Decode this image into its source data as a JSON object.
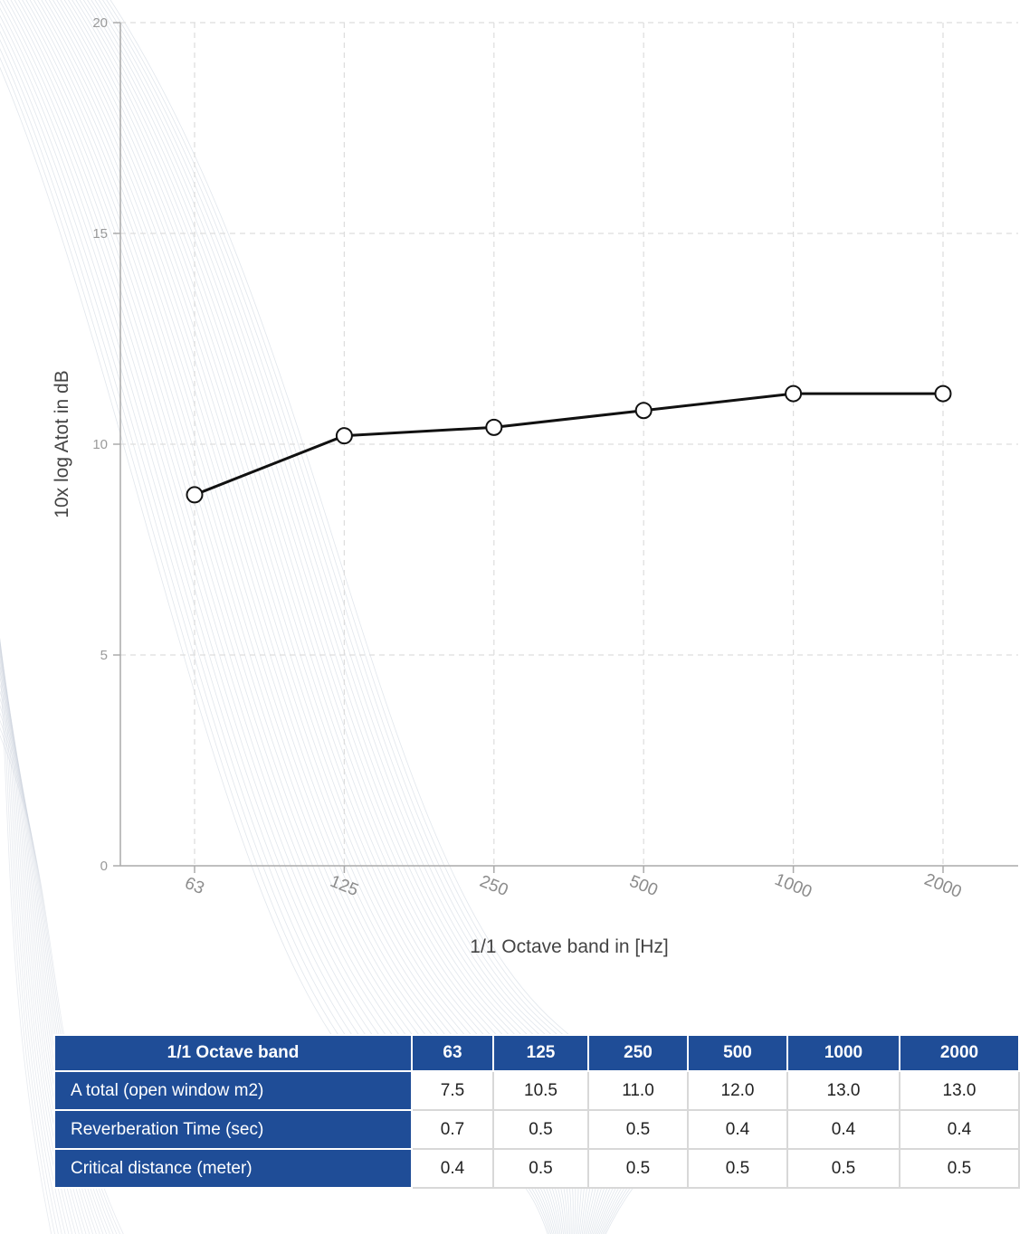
{
  "chart_data": {
    "type": "line",
    "categories": [
      "63",
      "125",
      "250",
      "500",
      "1000",
      "2000"
    ],
    "series": [
      {
        "values": [
          8.8,
          10.2,
          10.4,
          10.8,
          11.2,
          11.2
        ]
      }
    ],
    "xlabel": "1/1 Octave band in [Hz]",
    "ylabel": "10x log Atot in dB",
    "ylim": [
      0,
      20
    ],
    "yticks": [
      0,
      5,
      10,
      15,
      20
    ],
    "grid": true,
    "line_color": "#111111",
    "marker_fill": "#ffffff"
  },
  "table": {
    "header": [
      "1/1 Octave band",
      "63",
      "125",
      "250",
      "500",
      "1000",
      "2000"
    ],
    "rows": [
      {
        "label": "A total (open window m2)",
        "values": [
          "7.5",
          "10.5",
          "11.0",
          "12.0",
          "13.0",
          "13.0"
        ]
      },
      {
        "label": "Reverberation Time (sec)",
        "values": [
          "0.7",
          "0.5",
          "0.5",
          "0.4",
          "0.4",
          "0.4"
        ]
      },
      {
        "label": "Critical distance (meter)",
        "values": [
          "0.4",
          "0.5",
          "0.5",
          "0.5",
          "0.5",
          "0.5"
        ]
      }
    ],
    "header_color": "#1f4d97"
  }
}
